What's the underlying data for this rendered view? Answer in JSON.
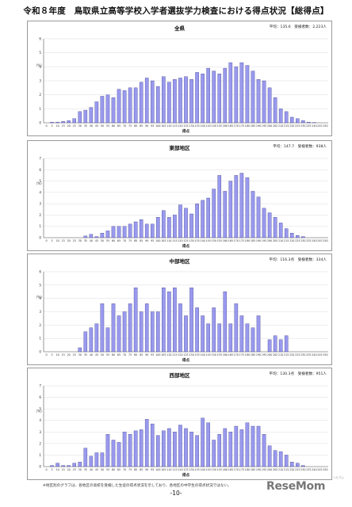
{
  "page": {
    "title": "令和８年度　鳥取県立高等学校入学者選抜学力検査における得点状況【総得点】",
    "footnote": "※地区別のグラフは、各地区の高校を受検した生徒の得点状況を示しており、各地区の中学生の得点状況ではない。",
    "page_number": "-10-",
    "logo": "ReseMom",
    "logo_small": "リセマム"
  },
  "colors": {
    "bar_fill": "#9999ee",
    "bar_stroke": "#3d3d8f",
    "grid": "#dcdcdc",
    "axis": "#555555"
  },
  "chart_data": [
    {
      "type": "bar",
      "title": "全県",
      "stats": "平均：135.6　受検者数：2,223人",
      "xlabel": "得点",
      "ylabel": "（%）",
      "ylim": [
        0,
        6
      ],
      "yticks": [
        "0",
        "1",
        "2",
        "3",
        "4",
        "5",
        "6"
      ],
      "categories": [
        "0",
        "5",
        "10",
        "15",
        "20",
        "25",
        "30",
        "35",
        "40",
        "45",
        "50",
        "55",
        "60",
        "65",
        "70",
        "75",
        "80",
        "85",
        "90",
        "95",
        "100",
        "105",
        "110",
        "115",
        "120",
        "125",
        "130",
        "135",
        "140",
        "145",
        "150",
        "155",
        "160",
        "165",
        "170",
        "175",
        "180",
        "185",
        "190",
        "195",
        "200",
        "205",
        "210",
        "215",
        "220",
        "225",
        "230",
        "235",
        "240",
        "245",
        "250"
      ],
      "values": [
        0.0,
        0.05,
        0.05,
        0.1,
        0.15,
        0.3,
        0.8,
        0.9,
        1.1,
        1.5,
        1.9,
        2.0,
        1.8,
        2.4,
        2.3,
        2.5,
        2.5,
        2.9,
        3.2,
        3.0,
        2.6,
        3.3,
        2.9,
        3.1,
        3.2,
        3.3,
        3.1,
        3.6,
        3.5,
        3.9,
        3.7,
        3.5,
        3.9,
        4.3,
        4.0,
        4.3,
        4.1,
        3.7,
        3.1,
        3.0,
        2.5,
        1.8,
        1.0,
        0.8,
        0.4,
        0.3,
        0.15,
        0.05,
        0.02,
        0.0,
        0.0
      ]
    },
    {
      "type": "bar",
      "title": "東部地区",
      "stats": "平均：147.7　受検者数：938人",
      "xlabel": "得点",
      "ylabel": "（%）",
      "ylim": [
        0,
        7
      ],
      "yticks": [
        "0",
        "1",
        "2",
        "3",
        "4",
        "5",
        "6",
        "7"
      ],
      "categories": [
        "0",
        "5",
        "10",
        "15",
        "20",
        "25",
        "30",
        "35",
        "40",
        "45",
        "50",
        "55",
        "60",
        "65",
        "70",
        "75",
        "80",
        "85",
        "90",
        "95",
        "100",
        "105",
        "110",
        "115",
        "120",
        "125",
        "130",
        "135",
        "140",
        "145",
        "150",
        "155",
        "160",
        "165",
        "170",
        "175",
        "180",
        "185",
        "190",
        "195",
        "200",
        "205",
        "210",
        "215",
        "220",
        "225",
        "230",
        "235",
        "240",
        "245",
        "250"
      ],
      "values": [
        0.0,
        0.0,
        0.0,
        0.0,
        0.0,
        0.0,
        0.0,
        0.15,
        0.3,
        0.1,
        0.4,
        0.6,
        1.0,
        1.0,
        1.0,
        1.2,
        1.4,
        1.6,
        1.2,
        1.2,
        1.8,
        2.4,
        1.8,
        2.0,
        2.9,
        2.6,
        2.1,
        3.0,
        3.3,
        3.5,
        4.3,
        5.5,
        4.1,
        5.0,
        5.5,
        5.7,
        5.3,
        4.1,
        3.6,
        2.6,
        2.2,
        1.8,
        1.3,
        0.8,
        0.4,
        0.2,
        0.1,
        0.0,
        0.0,
        0.0,
        0.0
      ]
    },
    {
      "type": "bar",
      "title": "中部地区",
      "stats": "平均：116.3点　受検者数：334人",
      "xlabel": "得点",
      "ylabel": "（%）",
      "ylim": [
        0,
        6
      ],
      "yticks": [
        "0",
        "1",
        "2",
        "3",
        "4",
        "5",
        "6"
      ],
      "categories": [
        "0",
        "5",
        "10",
        "15",
        "20",
        "25",
        "30",
        "35",
        "40",
        "45",
        "50",
        "55",
        "60",
        "65",
        "70",
        "75",
        "80",
        "85",
        "90",
        "95",
        "100",
        "105",
        "110",
        "115",
        "120",
        "125",
        "130",
        "135",
        "140",
        "145",
        "150",
        "155",
        "160",
        "165",
        "170",
        "175",
        "180",
        "185",
        "190",
        "195",
        "200",
        "205",
        "210",
        "215",
        "220",
        "225",
        "230",
        "235",
        "240",
        "245",
        "250"
      ],
      "values": [
        0.0,
        0.0,
        0.0,
        0.0,
        0.0,
        0.0,
        0.3,
        1.5,
        1.8,
        2.1,
        3.6,
        1.8,
        3.6,
        2.7,
        3.0,
        3.6,
        4.8,
        3.0,
        3.6,
        3.0,
        3.0,
        4.8,
        4.5,
        4.8,
        3.6,
        2.7,
        4.8,
        3.3,
        2.7,
        2.1,
        3.3,
        2.1,
        4.5,
        2.1,
        3.6,
        2.7,
        2.1,
        1.8,
        2.7,
        0.0,
        0.9,
        1.2,
        0.9,
        1.2,
        0.0,
        0.0,
        0.0,
        0.0,
        0.0,
        0.0,
        0.0
      ]
    },
    {
      "type": "bar",
      "title": "西部地区",
      "stats": "平均：130.3点　受検者数：951人",
      "xlabel": "得点",
      "ylabel": "（%）",
      "ylim": [
        0,
        7
      ],
      "yticks": [
        "0",
        "1",
        "2",
        "3",
        "4",
        "5",
        "6",
        "7"
      ],
      "categories": [
        "0",
        "5",
        "10",
        "15",
        "20",
        "25",
        "30",
        "35",
        "40",
        "45",
        "50",
        "55",
        "60",
        "65",
        "70",
        "75",
        "80",
        "85",
        "90",
        "95",
        "100",
        "105",
        "110",
        "115",
        "120",
        "125",
        "130",
        "135",
        "140",
        "145",
        "150",
        "155",
        "160",
        "165",
        "170",
        "175",
        "180",
        "185",
        "190",
        "195",
        "200",
        "205",
        "210",
        "215",
        "220",
        "225",
        "230",
        "235",
        "240",
        "245",
        "250"
      ],
      "values": [
        0.0,
        0.1,
        0.3,
        0.1,
        0.1,
        0.3,
        0.4,
        1.6,
        0.9,
        1.2,
        1.2,
        2.8,
        2.3,
        2.1,
        3.0,
        2.8,
        3.1,
        3.2,
        4.1,
        3.7,
        2.7,
        3.1,
        3.3,
        3.0,
        3.6,
        3.3,
        3.0,
        2.7,
        4.2,
        3.8,
        2.3,
        2.8,
        3.3,
        3.0,
        3.5,
        3.2,
        3.8,
        3.5,
        3.5,
        2.8,
        1.8,
        1.4,
        1.3,
        1.0,
        0.4,
        0.3,
        0.1,
        0.0,
        0.0,
        0.0,
        0.0
      ]
    }
  ]
}
